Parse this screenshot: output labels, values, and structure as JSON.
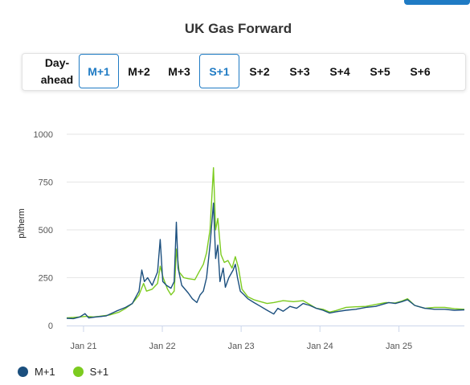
{
  "title": "UK Gas Forward",
  "tabs": [
    {
      "label_lines": [
        "Day-",
        "ahead"
      ],
      "selected": false
    },
    {
      "label": "M+1",
      "selected": true
    },
    {
      "label": "M+2",
      "selected": false
    },
    {
      "label": "M+3",
      "selected": false
    },
    {
      "label": "S+1",
      "selected": true
    },
    {
      "label": "S+2",
      "selected": false
    },
    {
      "label": "S+3",
      "selected": false
    },
    {
      "label": "S+4",
      "selected": false
    },
    {
      "label": "S+5",
      "selected": false
    },
    {
      "label": "S+6",
      "selected": false
    }
  ],
  "colors": {
    "accent": "#1f7bc4",
    "m1": "#1b4f7e",
    "s1": "#7ccb1f"
  },
  "chart_data": {
    "type": "line",
    "ylabel": "p/therm",
    "ylim": [
      0,
      1000
    ],
    "yticks": [
      0,
      250,
      500,
      750,
      1000
    ],
    "xlim": [
      "2020-10-15",
      "2025-10-31"
    ],
    "xticks": [
      {
        "date": "2021-01-01",
        "label": "Jan 21"
      },
      {
        "date": "2022-01-01",
        "label": "Jan 22"
      },
      {
        "date": "2023-01-01",
        "label": "Jan 23"
      },
      {
        "date": "2024-01-01",
        "label": "Jan 24"
      },
      {
        "date": "2025-01-01",
        "label": "Jan 25"
      }
    ],
    "grid": true,
    "legend": "bottom-left",
    "series": [
      {
        "name": "M+1",
        "color": "#1b4f7e",
        "points": [
          [
            "2020-10-15",
            38
          ],
          [
            "2020-11-15",
            36
          ],
          [
            "2020-12-15",
            45
          ],
          [
            "2021-01-08",
            62
          ],
          [
            "2021-01-25",
            40
          ],
          [
            "2021-03-01",
            45
          ],
          [
            "2021-04-15",
            50
          ],
          [
            "2021-06-01",
            75
          ],
          [
            "2021-07-15",
            95
          ],
          [
            "2021-08-15",
            115
          ],
          [
            "2021-09-15",
            180
          ],
          [
            "2021-09-28",
            290
          ],
          [
            "2021-10-10",
            230
          ],
          [
            "2021-10-25",
            250
          ],
          [
            "2021-11-15",
            210
          ],
          [
            "2021-12-10",
            280
          ],
          [
            "2021-12-22",
            450
          ],
          [
            "2022-01-03",
            230
          ],
          [
            "2022-01-20",
            210
          ],
          [
            "2022-02-10",
            195
          ],
          [
            "2022-02-25",
            230
          ],
          [
            "2022-03-07",
            540
          ],
          [
            "2022-03-15",
            300
          ],
          [
            "2022-04-01",
            210
          ],
          [
            "2022-05-01",
            170
          ],
          [
            "2022-05-20",
            140
          ],
          [
            "2022-06-10",
            120
          ],
          [
            "2022-06-25",
            160
          ],
          [
            "2022-07-10",
            180
          ],
          [
            "2022-07-25",
            250
          ],
          [
            "2022-08-10",
            420
          ],
          [
            "2022-08-26",
            640
          ],
          [
            "2022-09-05",
            350
          ],
          [
            "2022-09-15",
            420
          ],
          [
            "2022-09-25",
            230
          ],
          [
            "2022-10-10",
            300
          ],
          [
            "2022-10-20",
            200
          ],
          [
            "2022-11-05",
            250
          ],
          [
            "2022-11-25",
            290
          ],
          [
            "2022-12-05",
            320
          ],
          [
            "2022-12-15",
            250
          ],
          [
            "2022-12-28",
            180
          ],
          [
            "2023-01-15",
            160
          ],
          [
            "2023-02-01",
            140
          ],
          [
            "2023-03-01",
            120
          ],
          [
            "2023-04-01",
            100
          ],
          [
            "2023-05-01",
            80
          ],
          [
            "2023-06-01",
            60
          ],
          [
            "2023-06-20",
            90
          ],
          [
            "2023-07-15",
            75
          ],
          [
            "2023-08-15",
            100
          ],
          [
            "2023-09-15",
            90
          ],
          [
            "2023-10-15",
            115
          ],
          [
            "2023-11-15",
            105
          ],
          [
            "2023-12-15",
            90
          ],
          [
            "2024-01-15",
            80
          ],
          [
            "2024-02-15",
            65
          ],
          [
            "2024-03-15",
            72
          ],
          [
            "2024-05-01",
            80
          ],
          [
            "2024-06-15",
            85
          ],
          [
            "2024-08-01",
            95
          ],
          [
            "2024-09-15",
            100
          ],
          [
            "2024-10-15",
            110
          ],
          [
            "2024-11-15",
            120
          ],
          [
            "2024-12-15",
            115
          ],
          [
            "2025-01-15",
            125
          ],
          [
            "2025-02-10",
            135
          ],
          [
            "2025-03-15",
            105
          ],
          [
            "2025-05-01",
            90
          ],
          [
            "2025-06-15",
            85
          ],
          [
            "2025-08-01",
            85
          ],
          [
            "2025-09-15",
            80
          ],
          [
            "2025-10-31",
            82
          ]
        ]
      },
      {
        "name": "S+1",
        "color": "#7ccb1f",
        "points": [
          [
            "2020-10-15",
            40
          ],
          [
            "2020-11-15",
            42
          ],
          [
            "2020-12-15",
            45
          ],
          [
            "2021-01-15",
            48
          ],
          [
            "2021-02-15",
            45
          ],
          [
            "2021-03-15",
            48
          ],
          [
            "2021-05-01",
            55
          ],
          [
            "2021-06-15",
            70
          ],
          [
            "2021-07-15",
            90
          ],
          [
            "2021-08-15",
            115
          ],
          [
            "2021-09-15",
            160
          ],
          [
            "2021-10-06",
            220
          ],
          [
            "2021-10-20",
            180
          ],
          [
            "2021-11-15",
            190
          ],
          [
            "2021-12-10",
            220
          ],
          [
            "2021-12-22",
            310
          ],
          [
            "2022-01-05",
            250
          ],
          [
            "2022-01-25",
            190
          ],
          [
            "2022-02-10",
            160
          ],
          [
            "2022-02-25",
            180
          ],
          [
            "2022-03-08",
            400
          ],
          [
            "2022-03-20",
            280
          ],
          [
            "2022-04-10",
            250
          ],
          [
            "2022-05-01",
            245
          ],
          [
            "2022-06-01",
            240
          ],
          [
            "2022-06-20",
            280
          ],
          [
            "2022-07-10",
            320
          ],
          [
            "2022-07-25",
            380
          ],
          [
            "2022-08-10",
            500
          ],
          [
            "2022-08-26",
            825
          ],
          [
            "2022-09-05",
            500
          ],
          [
            "2022-09-15",
            560
          ],
          [
            "2022-09-30",
            370
          ],
          [
            "2022-10-15",
            330
          ],
          [
            "2022-11-01",
            340
          ],
          [
            "2022-11-20",
            300
          ],
          [
            "2022-12-05",
            360
          ],
          [
            "2022-12-20",
            300
          ],
          [
            "2023-01-05",
            190
          ],
          [
            "2023-02-01",
            150
          ],
          [
            "2023-03-01",
            135
          ],
          [
            "2023-04-01",
            125
          ],
          [
            "2023-05-01",
            115
          ],
          [
            "2023-06-01",
            120
          ],
          [
            "2023-07-15",
            130
          ],
          [
            "2023-09-01",
            125
          ],
          [
            "2023-10-15",
            130
          ],
          [
            "2023-11-15",
            110
          ],
          [
            "2023-12-15",
            90
          ],
          [
            "2024-01-15",
            85
          ],
          [
            "2024-02-15",
            70
          ],
          [
            "2024-03-15",
            78
          ],
          [
            "2024-05-01",
            95
          ],
          [
            "2024-06-15",
            98
          ],
          [
            "2024-08-01",
            100
          ],
          [
            "2024-09-15",
            110
          ],
          [
            "2024-11-01",
            120
          ],
          [
            "2024-12-15",
            118
          ],
          [
            "2025-01-15",
            128
          ],
          [
            "2025-02-10",
            140
          ],
          [
            "2025-03-15",
            105
          ],
          [
            "2025-05-01",
            90
          ],
          [
            "2025-06-15",
            95
          ],
          [
            "2025-08-01",
            95
          ],
          [
            "2025-09-15",
            88
          ],
          [
            "2025-10-31",
            85
          ]
        ]
      }
    ]
  }
}
